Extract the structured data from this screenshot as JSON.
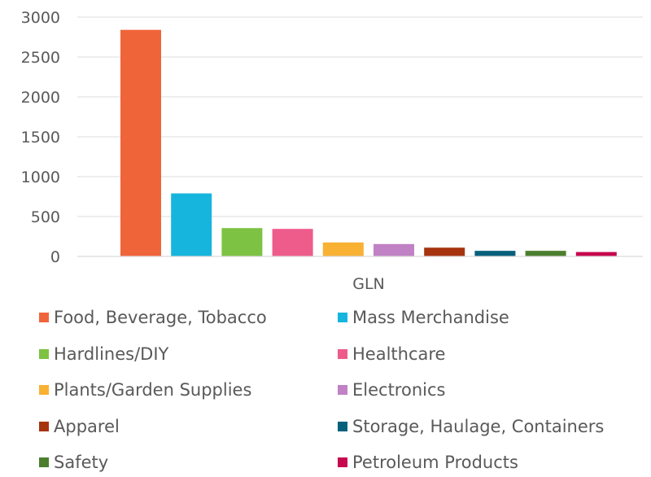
{
  "chart_data": {
    "type": "bar",
    "title": "",
    "xlabel": "GLN",
    "ylabel": "",
    "ylim": [
      0,
      3000
    ],
    "yticks": [
      0,
      500,
      1000,
      1500,
      2000,
      2500,
      3000
    ],
    "grid": true,
    "legend_position": "bottom",
    "categories": [
      "GLN"
    ],
    "series": [
      {
        "name": "Food, Beverage, Tobacco",
        "values": [
          2840
        ],
        "color": "#F0643A"
      },
      {
        "name": "Mass Merchandise",
        "values": [
          790
        ],
        "color": "#16B5DD"
      },
      {
        "name": "Hardlines/DIY",
        "values": [
          355
        ],
        "color": "#7DC242"
      },
      {
        "name": "Healthcare",
        "values": [
          345
        ],
        "color": "#EE5C8C"
      },
      {
        "name": "Plants/Garden Supplies",
        "values": [
          175
        ],
        "color": "#F8B133"
      },
      {
        "name": "Electronics",
        "values": [
          155
        ],
        "color": "#C081C5"
      },
      {
        "name": "Apparel",
        "values": [
          110
        ],
        "color": "#A6340F"
      },
      {
        "name": "Storage, Haulage, Containers",
        "values": [
          70
        ],
        "color": "#07617D"
      },
      {
        "name": "Safety",
        "values": [
          70
        ],
        "color": "#4B7F2D"
      },
      {
        "name": "Petroleum Products",
        "values": [
          55
        ],
        "color": "#C7084E"
      }
    ]
  }
}
